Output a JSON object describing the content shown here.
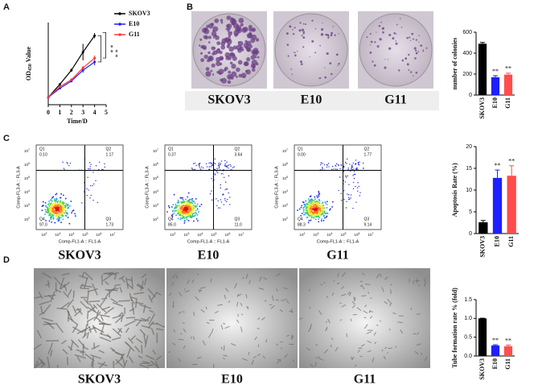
{
  "panel_labels": [
    "A",
    "B",
    "C",
    "D"
  ],
  "chart_data": [
    {
      "type": "line",
      "x_label": "Time/D",
      "y_label": {
        "main": "OD",
        "sub": "450",
        "rest": " Value"
      },
      "x": [
        0,
        1,
        2,
        3,
        4
      ],
      "xlim": [
        0,
        5
      ],
      "xticks": [
        0,
        1,
        2,
        3,
        4,
        5
      ],
      "ylim": [
        0,
        2.5
      ],
      "series": [
        {
          "name": "SKOV3",
          "color": "#000000",
          "values": [
            0.22,
            0.62,
            1.05,
            1.6,
            2.1
          ],
          "errors": [
            0.02,
            0.03,
            0.05,
            0.25,
            0.08
          ]
        },
        {
          "name": "E10",
          "color": "#1f1fff",
          "values": [
            0.22,
            0.5,
            0.72,
            1.05,
            1.3
          ],
          "errors": [
            0.02,
            0.03,
            0.04,
            0.08,
            0.1
          ]
        },
        {
          "name": "G11",
          "color": "#ff3b3b",
          "values": [
            0.22,
            0.55,
            0.76,
            1.12,
            1.42
          ],
          "errors": [
            0.02,
            0.03,
            0.04,
            0.06,
            0.08
          ]
        }
      ],
      "annotations": [
        "* *",
        "* *"
      ]
    },
    {
      "type": "bar",
      "y_label": "number of colonies",
      "categories": [
        "SKOV3",
        "E10",
        "G11"
      ],
      "values": [
        490,
        170,
        195
      ],
      "errors": [
        12,
        15,
        14
      ],
      "colors": [
        "#000000",
        "#1f1fff",
        "#ff4d4d"
      ],
      "ylim": [
        0,
        600
      ],
      "yticks": [
        0,
        200,
        400,
        600
      ],
      "significance": [
        null,
        "**",
        "**"
      ]
    },
    {
      "type": "bar",
      "y_label": "Apoptosis Rate (%)",
      "categories": [
        "SKOV3",
        "E10",
        "G11"
      ],
      "values": [
        2.6,
        12.8,
        13.3
      ],
      "errors": [
        0.4,
        1.8,
        2.3
      ],
      "colors": [
        "#000000",
        "#1f1fff",
        "#ff4d4d"
      ],
      "ylim": [
        0,
        20
      ],
      "yticks": [
        0,
        5,
        10,
        15,
        20
      ],
      "significance": [
        null,
        "**",
        "**"
      ]
    },
    {
      "type": "bar",
      "y_label": "Tube formation rate % (fold)",
      "categories": [
        "SKOV3",
        "E10",
        "G11"
      ],
      "values": [
        1.0,
        0.28,
        0.26
      ],
      "errors": [
        0.005,
        0.02,
        0.03
      ],
      "colors": [
        "#000000",
        "#1f1fff",
        "#ff4d4d"
      ],
      "ylim": [
        0,
        1.5
      ],
      "yticks": [
        {
          "value": 0,
          "label": "0.0"
        },
        0.5,
        {
          "value": 1,
          "label": "1.0"
        },
        1.5
      ],
      "significance": [
        null,
        "**",
        "**"
      ]
    }
  ],
  "colony_images": [
    "SKOV3",
    "E10",
    "G11"
  ],
  "flow_axes": {
    "x_label": "Comp-FL1-A :: FL1-A",
    "y_label": "Comp-FL3-A :: FL3-A",
    "tick_base": "10",
    "y_exponents": [
      "7",
      "6",
      "5",
      "4",
      "3",
      "2"
    ],
    "x_exponents": [
      "2",
      "3",
      "4",
      "5",
      "6",
      "7"
    ]
  },
  "flow_plots": [
    {
      "name": "SKOV3",
      "quadrants": [
        {
          "name": "Q1",
          "value": "0.10"
        },
        {
          "name": "Q2",
          "value": "1.17"
        },
        {
          "name": "Q4",
          "value": "97.0"
        },
        {
          "name": "Q3",
          "value": "1.73"
        }
      ]
    },
    {
      "name": "E10",
      "quadrants": [
        {
          "name": "Q1",
          "value": "0.37"
        },
        {
          "name": "Q2",
          "value": "3.64"
        },
        {
          "name": "Q4",
          "value": "85.0"
        },
        {
          "name": "Q3",
          "value": "11.0"
        }
      ]
    },
    {
      "name": "G11",
      "quadrants": [
        {
          "name": "Q1",
          "value": "0.00"
        },
        {
          "name": "Q2",
          "value": "1.77"
        },
        {
          "name": "Q4",
          "value": "88.3"
        },
        {
          "name": "Q3",
          "value": "9.14"
        }
      ]
    }
  ],
  "tube_images": [
    "SKOV3",
    "E10",
    "G11"
  ]
}
